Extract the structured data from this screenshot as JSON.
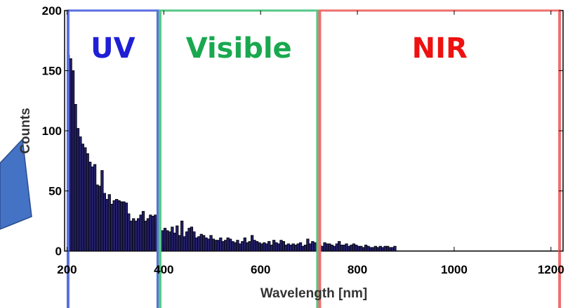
{
  "chart_data": {
    "type": "bar",
    "xlabel": "Wavelength [nm]",
    "ylabel": "Counts",
    "xlim": [
      195,
      1225
    ],
    "ylim": [
      0,
      200
    ],
    "bin_width": 5,
    "x_ticks": [
      "200",
      "400",
      "600",
      "800",
      "1000",
      "1200"
    ],
    "y_ticks": [
      "0",
      "50",
      "100",
      "150",
      "200"
    ],
    "grid": false,
    "bars": [
      163,
      160,
      150,
      122,
      102,
      95,
      89,
      86,
      81,
      74,
      70,
      72,
      55,
      54,
      67,
      48,
      43,
      47,
      39,
      42,
      43,
      42,
      41,
      41,
      40,
      31,
      25,
      27,
      25,
      27,
      30,
      33,
      25,
      27,
      30,
      29,
      30,
      22,
      16,
      17,
      19,
      17,
      16,
      20,
      15,
      21,
      13,
      25,
      12,
      16,
      19,
      20,
      16,
      11,
      12,
      14,
      13,
      11,
      10,
      13,
      10,
      9,
      9,
      11,
      8,
      9,
      11,
      10,
      8,
      7,
      9,
      6,
      8,
      11,
      7,
      8,
      13,
      9,
      8,
      7,
      6,
      7,
      6,
      8,
      5,
      9,
      7,
      6,
      9,
      8,
      5,
      6,
      5,
      6,
      5,
      6,
      7,
      4,
      5,
      10,
      6,
      8,
      7,
      6,
      5,
      4,
      7,
      6,
      6,
      5,
      4,
      6,
      8,
      5,
      5,
      6,
      4,
      5,
      6,
      5,
      4,
      4,
      3,
      5,
      4,
      3,
      3,
      4,
      3,
      4,
      3,
      4,
      4,
      3,
      3,
      4
    ],
    "bar_color": "#24206a",
    "regions": [
      {
        "label": "UV",
        "start": 200,
        "end": 390,
        "color": "#1f1fd6",
        "border_color": "#5b6fe0"
      },
      {
        "label": "Visible",
        "start": 390,
        "end": 720,
        "color": "#19a84f",
        "border_color": "#55c888"
      },
      {
        "label": "NIR",
        "start": 720,
        "end": 1220,
        "color": "#ee1111",
        "border_color": "#ee6f6f"
      }
    ]
  },
  "decoration": {
    "arrow_color": "#4472c4",
    "arrow_stroke": "#2b4e8c"
  }
}
